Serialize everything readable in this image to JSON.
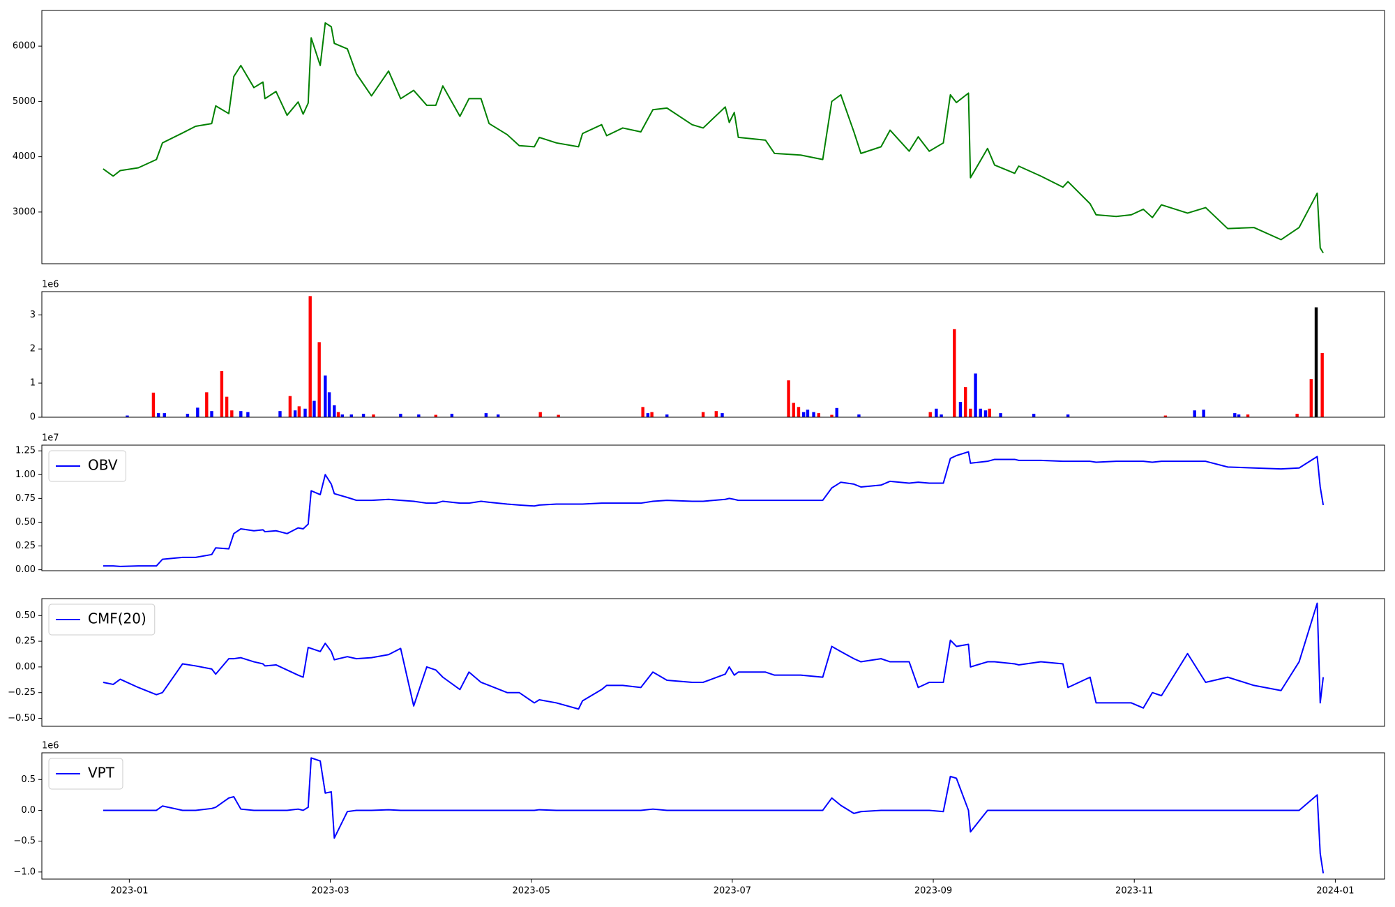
{
  "chart_data": [
    {
      "type": "line",
      "xlim": [
        -0.87,
        12.49
      ],
      "ylim": [
        2065,
        6645
      ],
      "yticks": [
        3000,
        4000,
        5000,
        6000
      ],
      "x": [
        -0.26,
        -0.16,
        -0.09,
        0.09,
        0.27,
        0.33,
        0.53,
        0.66,
        0.82,
        0.86,
        0.99,
        1.04,
        1.11,
        1.24,
        1.33,
        1.35,
        1.46,
        1.57,
        1.68,
        1.73,
        1.78,
        1.81,
        1.9,
        1.95,
        2.01,
        2.04,
        2.17,
        2.26,
        2.41,
        2.58,
        2.7,
        2.83,
        2.96,
        3.05,
        3.12,
        3.29,
        3.38,
        3.5,
        3.58,
        3.76,
        3.88,
        4.03,
        4.08,
        4.25,
        4.47,
        4.51,
        4.7,
        4.75,
        4.91,
        5.09,
        5.21,
        5.35,
        5.6,
        5.71,
        5.93,
        5.97,
        6.02,
        6.06,
        6.33,
        6.42,
        6.68,
        6.9,
        6.99,
        7.08,
        7.21,
        7.28,
        7.48,
        7.57,
        7.76,
        7.85,
        7.96,
        8.1,
        8.17,
        8.23,
        8.35,
        8.37,
        8.54,
        8.61,
        8.81,
        8.85,
        9.07,
        9.29,
        9.34,
        9.56,
        9.62,
        9.82,
        9.97,
        10.09,
        10.18,
        10.27,
        10.53,
        10.71,
        10.93,
        11.19,
        11.46,
        11.64,
        11.82,
        11.85,
        11.88
      ],
      "series": [
        {
          "color": "#008000",
          "values": [
            3780,
            3650,
            3750,
            3800,
            3950,
            4250,
            4430,
            4550,
            4600,
            4920,
            4780,
            5450,
            5650,
            5250,
            5350,
            5050,
            5180,
            4750,
            4990,
            4770,
            4970,
            6150,
            5650,
            6420,
            6350,
            6050,
            5950,
            5500,
            5100,
            5550,
            5050,
            5200,
            4930,
            4930,
            5280,
            4730,
            5050,
            5050,
            4600,
            4400,
            4200,
            4180,
            4350,
            4250,
            4180,
            4420,
            4580,
            4380,
            4520,
            4450,
            4850,
            4880,
            4580,
            4520,
            4900,
            4620,
            4800,
            4350,
            4300,
            4060,
            4030,
            3950,
            5000,
            5120,
            4450,
            4060,
            4180,
            4480,
            4100,
            4360,
            4100,
            4250,
            5120,
            4980,
            5150,
            3620,
            4150,
            3850,
            3700,
            3830,
            3650,
            3450,
            3550,
            3150,
            2950,
            2920,
            2950,
            3050,
            2900,
            3130,
            2980,
            3080,
            2700,
            2720,
            2500,
            2720,
            3340,
            2350,
            2260
          ]
        }
      ]
    },
    {
      "type": "bar",
      "xlim": [
        -0.87,
        12.49
      ],
      "ylim": [
        0,
        3.68
      ],
      "yticks": [
        0,
        1,
        2,
        3
      ],
      "offset_label": "1e6",
      "series": [
        {
          "color": "#ff0000",
          "x": [
            0.24,
            0.77,
            0.92,
            0.97,
            1.02,
            1.6,
            1.69,
            1.8,
            1.89,
            2.08,
            2.43,
            3.05,
            4.09,
            4.27,
            5.11,
            5.2,
            5.71,
            5.84,
            6.56,
            6.61,
            6.66,
            6.86,
            6.99,
            7.97,
            8.21,
            8.32,
            8.37,
            8.56,
            10.31,
            11.13,
            11.62,
            11.76,
            11.87
          ],
          "values": [
            0.72,
            0.73,
            1.35,
            0.6,
            0.2,
            0.62,
            0.32,
            3.55,
            2.2,
            0.15,
            0.08,
            0.07,
            0.15,
            0.07,
            0.3,
            0.15,
            0.15,
            0.18,
            1.08,
            0.42,
            0.3,
            0.12,
            0.07,
            0.15,
            2.58,
            0.88,
            0.25,
            0.25,
            0.05,
            0.08,
            0.1,
            1.12,
            1.88
          ]
        },
        {
          "color": "#0000ff",
          "x": [
            -0.02,
            0.29,
            0.35,
            0.58,
            0.68,
            0.82,
            1.11,
            1.18,
            1.5,
            1.65,
            1.75,
            1.84,
            1.95,
            1.99,
            2.04,
            2.12,
            2.21,
            2.33,
            2.7,
            2.88,
            3.21,
            3.55,
            3.67,
            5.16,
            5.35,
            5.9,
            6.71,
            6.75,
            6.81,
            7.04,
            7.26,
            8.03,
            8.08,
            8.27,
            8.42,
            8.47,
            8.52,
            8.67,
            9.0,
            9.34,
            10.6,
            10.69,
            11.0,
            11.04
          ],
          "values": [
            0.05,
            0.12,
            0.12,
            0.1,
            0.28,
            0.18,
            0.18,
            0.15,
            0.18,
            0.2,
            0.25,
            0.48,
            1.22,
            0.73,
            0.35,
            0.08,
            0.08,
            0.1,
            0.1,
            0.08,
            0.1,
            0.12,
            0.08,
            0.12,
            0.08,
            0.12,
            0.15,
            0.22,
            0.15,
            0.27,
            0.08,
            0.25,
            0.08,
            0.45,
            1.28,
            0.25,
            0.2,
            0.12,
            0.1,
            0.08,
            0.2,
            0.22,
            0.12,
            0.08
          ]
        },
        {
          "color": "#000000",
          "x": [
            11.81
          ],
          "values": [
            3.22
          ]
        }
      ]
    },
    {
      "type": "line",
      "xlim": [
        -0.87,
        12.49
      ],
      "ylim": [
        -0.01,
        1.31
      ],
      "offset_label": "1e7",
      "legend": "upper left",
      "yticks": [
        {
          "value": 0,
          "label": "0.00"
        },
        {
          "value": 0.25,
          "label": "0.25"
        },
        {
          "value": 0.5,
          "label": "0.50"
        },
        {
          "value": 0.75,
          "label": "0.75"
        },
        {
          "value": 1,
          "label": "1.00"
        },
        {
          "value": 1.25,
          "label": "1.25"
        }
      ],
      "x": [
        -0.26,
        -0.16,
        -0.09,
        0.09,
        0.27,
        0.33,
        0.53,
        0.66,
        0.82,
        0.86,
        0.99,
        1.04,
        1.11,
        1.24,
        1.33,
        1.35,
        1.46,
        1.57,
        1.68,
        1.73,
        1.78,
        1.81,
        1.9,
        1.95,
        2.01,
        2.04,
        2.17,
        2.26,
        2.41,
        2.58,
        2.7,
        2.83,
        2.96,
        3.05,
        3.12,
        3.29,
        3.38,
        3.5,
        3.58,
        3.76,
        3.88,
        4.03,
        4.08,
        4.25,
        4.47,
        4.51,
        4.7,
        4.75,
        4.91,
        5.09,
        5.21,
        5.35,
        5.6,
        5.71,
        5.93,
        5.97,
        6.02,
        6.06,
        6.33,
        6.42,
        6.68,
        6.9,
        6.99,
        7.08,
        7.21,
        7.28,
        7.48,
        7.57,
        7.76,
        7.85,
        7.96,
        8.1,
        8.17,
        8.23,
        8.35,
        8.37,
        8.54,
        8.61,
        8.81,
        8.85,
        9.07,
        9.29,
        9.34,
        9.56,
        9.62,
        9.82,
        9.97,
        10.09,
        10.18,
        10.27,
        10.53,
        10.71,
        10.93,
        11.19,
        11.46,
        11.64,
        11.82,
        11.85,
        11.88
      ],
      "series": [
        {
          "name": "OBV",
          "color": "#0000ff",
          "values": [
            0.04,
            0.04,
            0.035,
            0.04,
            0.04,
            0.11,
            0.13,
            0.13,
            0.16,
            0.23,
            0.22,
            0.38,
            0.43,
            0.41,
            0.42,
            0.4,
            0.41,
            0.38,
            0.44,
            0.43,
            0.48,
            0.83,
            0.79,
            1.0,
            0.9,
            0.8,
            0.76,
            0.73,
            0.73,
            0.74,
            0.73,
            0.72,
            0.7,
            0.7,
            0.72,
            0.7,
            0.7,
            0.72,
            0.71,
            0.69,
            0.68,
            0.67,
            0.68,
            0.69,
            0.69,
            0.69,
            0.7,
            0.7,
            0.7,
            0.7,
            0.72,
            0.73,
            0.72,
            0.72,
            0.74,
            0.75,
            0.74,
            0.73,
            0.73,
            0.73,
            0.73,
            0.73,
            0.86,
            0.92,
            0.9,
            0.87,
            0.89,
            0.93,
            0.91,
            0.92,
            0.91,
            0.91,
            1.17,
            1.2,
            1.24,
            1.12,
            1.14,
            1.16,
            1.16,
            1.15,
            1.15,
            1.14,
            1.14,
            1.14,
            1.13,
            1.14,
            1.14,
            1.14,
            1.13,
            1.14,
            1.14,
            1.14,
            1.08,
            1.07,
            1.06,
            1.07,
            1.19,
            0.87,
            0.68
          ]
        }
      ]
    },
    {
      "type": "line",
      "xlim": [
        -0.87,
        12.49
      ],
      "ylim": [
        -0.578,
        0.665
      ],
      "legend": "upper left",
      "yticks": [
        {
          "value": -0.5,
          "label": "−0.50"
        },
        {
          "value": -0.25,
          "label": "−0.25"
        },
        {
          "value": 0,
          "label": "0.00"
        },
        {
          "value": 0.25,
          "label": "0.25"
        },
        {
          "value": 0.5,
          "label": "0.50"
        }
      ],
      "x": [
        -0.26,
        -0.16,
        -0.09,
        0.09,
        0.27,
        0.33,
        0.53,
        0.66,
        0.82,
        0.86,
        0.99,
        1.04,
        1.11,
        1.24,
        1.33,
        1.35,
        1.46,
        1.57,
        1.68,
        1.73,
        1.78,
        1.81,
        1.9,
        1.95,
        2.01,
        2.04,
        2.17,
        2.26,
        2.41,
        2.58,
        2.7,
        2.83,
        2.96,
        3.05,
        3.12,
        3.29,
        3.38,
        3.5,
        3.58,
        3.76,
        3.88,
        4.03,
        4.08,
        4.25,
        4.47,
        4.51,
        4.7,
        4.75,
        4.91,
        5.09,
        5.21,
        5.35,
        5.6,
        5.71,
        5.93,
        5.97,
        6.02,
        6.06,
        6.33,
        6.42,
        6.68,
        6.9,
        6.99,
        7.08,
        7.21,
        7.28,
        7.48,
        7.57,
        7.76,
        7.85,
        7.96,
        8.1,
        8.17,
        8.23,
        8.35,
        8.37,
        8.54,
        8.61,
        8.81,
        8.85,
        9.07,
        9.29,
        9.34,
        9.56,
        9.62,
        9.82,
        9.97,
        10.09,
        10.18,
        10.27,
        10.53,
        10.71,
        10.93,
        11.19,
        11.46,
        11.64,
        11.82,
        11.85,
        11.88
      ],
      "series": [
        {
          "name": "CMF(20)",
          "color": "#0000ff",
          "values": [
            -0.15,
            -0.17,
            -0.12,
            -0.2,
            -0.27,
            -0.25,
            0.03,
            0.01,
            -0.02,
            -0.07,
            0.08,
            0.08,
            0.09,
            0.05,
            0.03,
            0.01,
            0.02,
            -0.03,
            -0.08,
            -0.1,
            0.19,
            0.18,
            0.15,
            0.23,
            0.15,
            0.07,
            0.1,
            0.08,
            0.09,
            0.12,
            0.18,
            -0.38,
            0.0,
            -0.03,
            -0.1,
            -0.22,
            -0.05,
            -0.15,
            -0.18,
            -0.25,
            -0.25,
            -0.35,
            -0.32,
            -0.35,
            -0.41,
            -0.33,
            -0.22,
            -0.18,
            -0.18,
            -0.2,
            -0.05,
            -0.13,
            -0.15,
            -0.15,
            -0.07,
            0.0,
            -0.08,
            -0.05,
            -0.05,
            -0.08,
            -0.08,
            -0.1,
            0.2,
            0.15,
            0.08,
            0.05,
            0.08,
            0.05,
            0.05,
            -0.2,
            -0.15,
            -0.15,
            0.26,
            0.2,
            0.22,
            0.0,
            0.05,
            0.05,
            0.03,
            0.02,
            0.05,
            0.03,
            -0.2,
            -0.1,
            -0.35,
            -0.35,
            -0.35,
            -0.4,
            -0.25,
            -0.28,
            0.13,
            -0.15,
            -0.1,
            -0.18,
            -0.23,
            0.05,
            0.62,
            -0.35,
            -0.1
          ]
        }
      ]
    },
    {
      "type": "line",
      "xlim": [
        -0.87,
        12.49
      ],
      "ylim": [
        -1.115,
        0.933
      ],
      "offset_label": "1e6",
      "legend": "upper left",
      "yticks": [
        {
          "value": -1,
          "label": "−1.0"
        },
        {
          "value": -0.5,
          "label": "−0.5"
        },
        {
          "value": 0,
          "label": "0.0"
        },
        {
          "value": 0.5,
          "label": "0.5"
        }
      ],
      "xticks": [
        {
          "value": 0,
          "label": "2023-01"
        },
        {
          "value": 2,
          "label": "2023-03"
        },
        {
          "value": 4,
          "label": "2023-05"
        },
        {
          "value": 6,
          "label": "2023-07"
        },
        {
          "value": 8,
          "label": "2023-09"
        },
        {
          "value": 10,
          "label": "2023-11"
        },
        {
          "value": 12,
          "label": "2024-01"
        }
      ],
      "x": [
        -0.26,
        -0.16,
        -0.09,
        0.09,
        0.27,
        0.33,
        0.53,
        0.66,
        0.82,
        0.86,
        0.99,
        1.04,
        1.11,
        1.24,
        1.33,
        1.35,
        1.46,
        1.57,
        1.68,
        1.73,
        1.78,
        1.81,
        1.9,
        1.95,
        2.01,
        2.04,
        2.17,
        2.26,
        2.41,
        2.58,
        2.7,
        2.83,
        2.96,
        3.05,
        3.12,
        3.29,
        3.38,
        3.5,
        3.58,
        3.76,
        3.88,
        4.03,
        4.08,
        4.25,
        4.47,
        4.51,
        4.7,
        4.75,
        4.91,
        5.09,
        5.21,
        5.35,
        5.6,
        5.71,
        5.93,
        5.97,
        6.02,
        6.06,
        6.33,
        6.42,
        6.68,
        6.9,
        6.99,
        7.08,
        7.21,
        7.28,
        7.48,
        7.57,
        7.76,
        7.85,
        7.96,
        8.1,
        8.17,
        8.23,
        8.35,
        8.37,
        8.54,
        8.61,
        8.81,
        8.85,
        9.07,
        9.29,
        9.34,
        9.56,
        9.62,
        9.82,
        9.97,
        10.09,
        10.18,
        10.27,
        10.53,
        10.71,
        10.93,
        11.19,
        11.46,
        11.64,
        11.82,
        11.85,
        11.88
      ],
      "series": [
        {
          "name": "VPT",
          "color": "#0000ff",
          "values": [
            0,
            0,
            0,
            0,
            0,
            0.07,
            0,
            0,
            0.03,
            0.05,
            0.2,
            0.22,
            0.02,
            0,
            0,
            0,
            0,
            0,
            0.02,
            0,
            0.05,
            0.85,
            0.8,
            0.28,
            0.3,
            -0.45,
            -0.02,
            0,
            0,
            0.01,
            0,
            0,
            0,
            0,
            0,
            0,
            0,
            0,
            0,
            0,
            0,
            0,
            0.01,
            0,
            0,
            0,
            0,
            0,
            0,
            0,
            0.02,
            0,
            0,
            0,
            0,
            0,
            0,
            0,
            0,
            0,
            0,
            0,
            0.2,
            0.08,
            -0.05,
            -0.02,
            0,
            0,
            0,
            0,
            0,
            -0.02,
            0.55,
            0.52,
            0,
            -0.35,
            0,
            0,
            0,
            0,
            0,
            0,
            0,
            0,
            0,
            0,
            0,
            0,
            0,
            0,
            0,
            0,
            0,
            0,
            0,
            0,
            0.25,
            -0.7,
            -1.02
          ]
        }
      ]
    }
  ]
}
